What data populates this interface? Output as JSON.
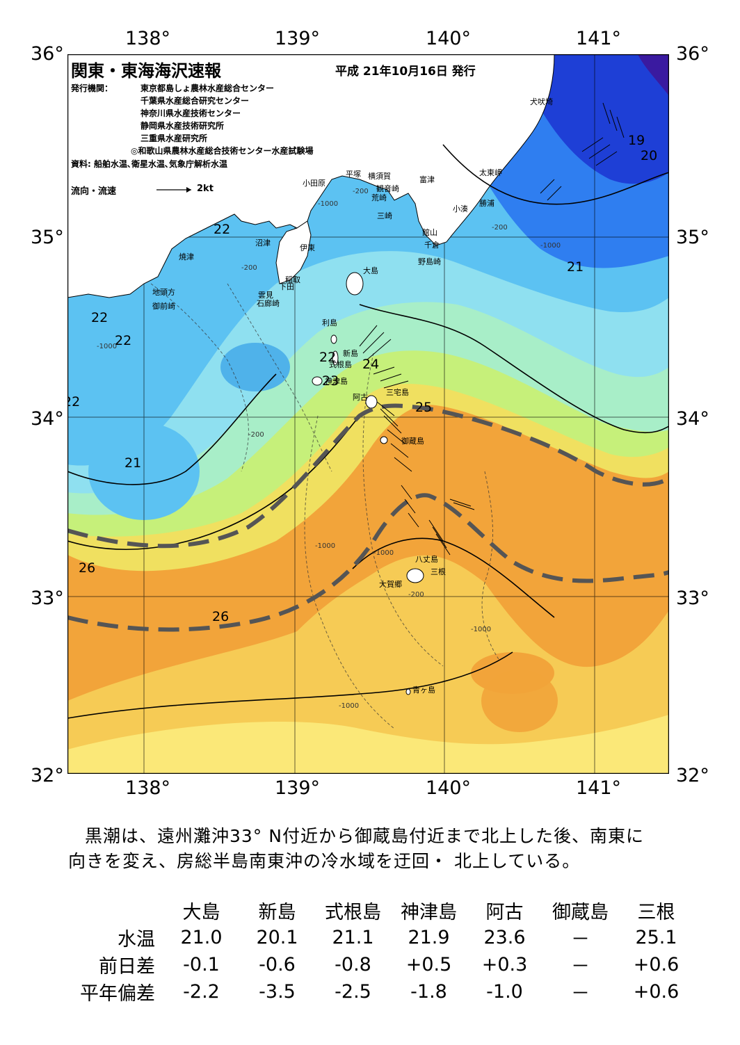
{
  "title": "関東・東海海沢速報",
  "issue_date": "平成 21年10月16日 発行",
  "issuers_label": "発行機関：",
  "issuers": [
    "東京都島しょ農林水産総合センター",
    "千葉県水産総合研究センター",
    "神奈川県水産技術センター",
    "静岡県水産技術研究所",
    "三重県水産研究所",
    "◎和歌山県農林水産総合技術センター水産試験場"
  ],
  "sources": "資料: 船舶水温､衛星水温､気象庁解析水温",
  "flow_legend": {
    "label": "流向・流速",
    "scale": "2kt"
  },
  "axes": {
    "lon_ticks": [
      "138°",
      "139°",
      "140°",
      "141°"
    ],
    "lat_ticks": [
      "36°",
      "35°",
      "34°",
      "33°",
      "32°"
    ]
  },
  "place_labels": {
    "inubozaki": "犬吠埼",
    "taitomisaki": "太東岬",
    "katsuura": "勝浦",
    "kominato": "小湊",
    "tomitsu": "富津",
    "kannonzaki": "観音崎",
    "yokosuka": "横須賀",
    "hiratsuka": "平塚",
    "odawara": "小田原",
    "araizaki": "荒崎",
    "misaki": "三崎",
    "tateyama": "館山",
    "chikura": "千倉",
    "nojimazaki": "野島崎",
    "numazu": "沼津",
    "ito": "伊東",
    "inatori": "稲取",
    "shimoda": "下田",
    "kumomi": "雲見",
    "irozaki": "石廊崎",
    "yaizu": "焼津",
    "jitokata": "地頭方",
    "omaezaki": "御前崎",
    "oshima": "大島",
    "toshima": "利島",
    "niijima": "新島",
    "shikinejima": "式根島",
    "kozushima": "神津島",
    "ako": "阿古",
    "miyake": "三宅島",
    "mikurajima": "御蔵島",
    "hachijojima": "八丈島",
    "okago": "大賀郷",
    "mitsune": "三根",
    "aogashima": "青ヶ島"
  },
  "isotherm_labels": [
    "19",
    "20",
    "21",
    "22",
    "22",
    "22",
    "22",
    "23",
    "24",
    "25",
    "21",
    "26",
    "26",
    "22"
  ],
  "depth_labels": {
    "d200": "-200",
    "d1000": "-1000"
  },
  "colors": {
    "t19": "#1e3fd6",
    "t20": "#2f7ef0",
    "t21": "#5cc2f2",
    "t22": "#8fe0f0",
    "t23": "#a8eec8",
    "t24": "#c6f07a",
    "t25": "#f0e060",
    "t26": "#f2a43a",
    "kuroshio_axis": "#555555",
    "land": "#ffffff"
  },
  "summary": [
    "黒潮は、遠州灘沖33° N付近から御蔵島付近まで北上した後、南東に",
    "向きを変え、房総半島南東沖の冷水域を迂回・ 北上している。"
  ],
  "obs_table": {
    "stations": [
      "大島",
      "新島",
      "式根島",
      "神津島",
      "阿古",
      "御蔵島",
      "三根"
    ],
    "rows": [
      {
        "label": "水温",
        "values": [
          "21.0",
          "20.1",
          "21.1",
          "21.9",
          "23.6",
          "－",
          "25.1"
        ]
      },
      {
        "label": "前日差",
        "values": [
          "-0.1",
          "-0.6",
          "-0.8",
          "+0.5",
          "+0.3",
          "－",
          "+0.6"
        ]
      },
      {
        "label": "平年偏差",
        "values": [
          "-2.2",
          "-3.5",
          "-2.5",
          "-1.8",
          "-1.0",
          "－",
          "+0.6"
        ]
      }
    ]
  }
}
